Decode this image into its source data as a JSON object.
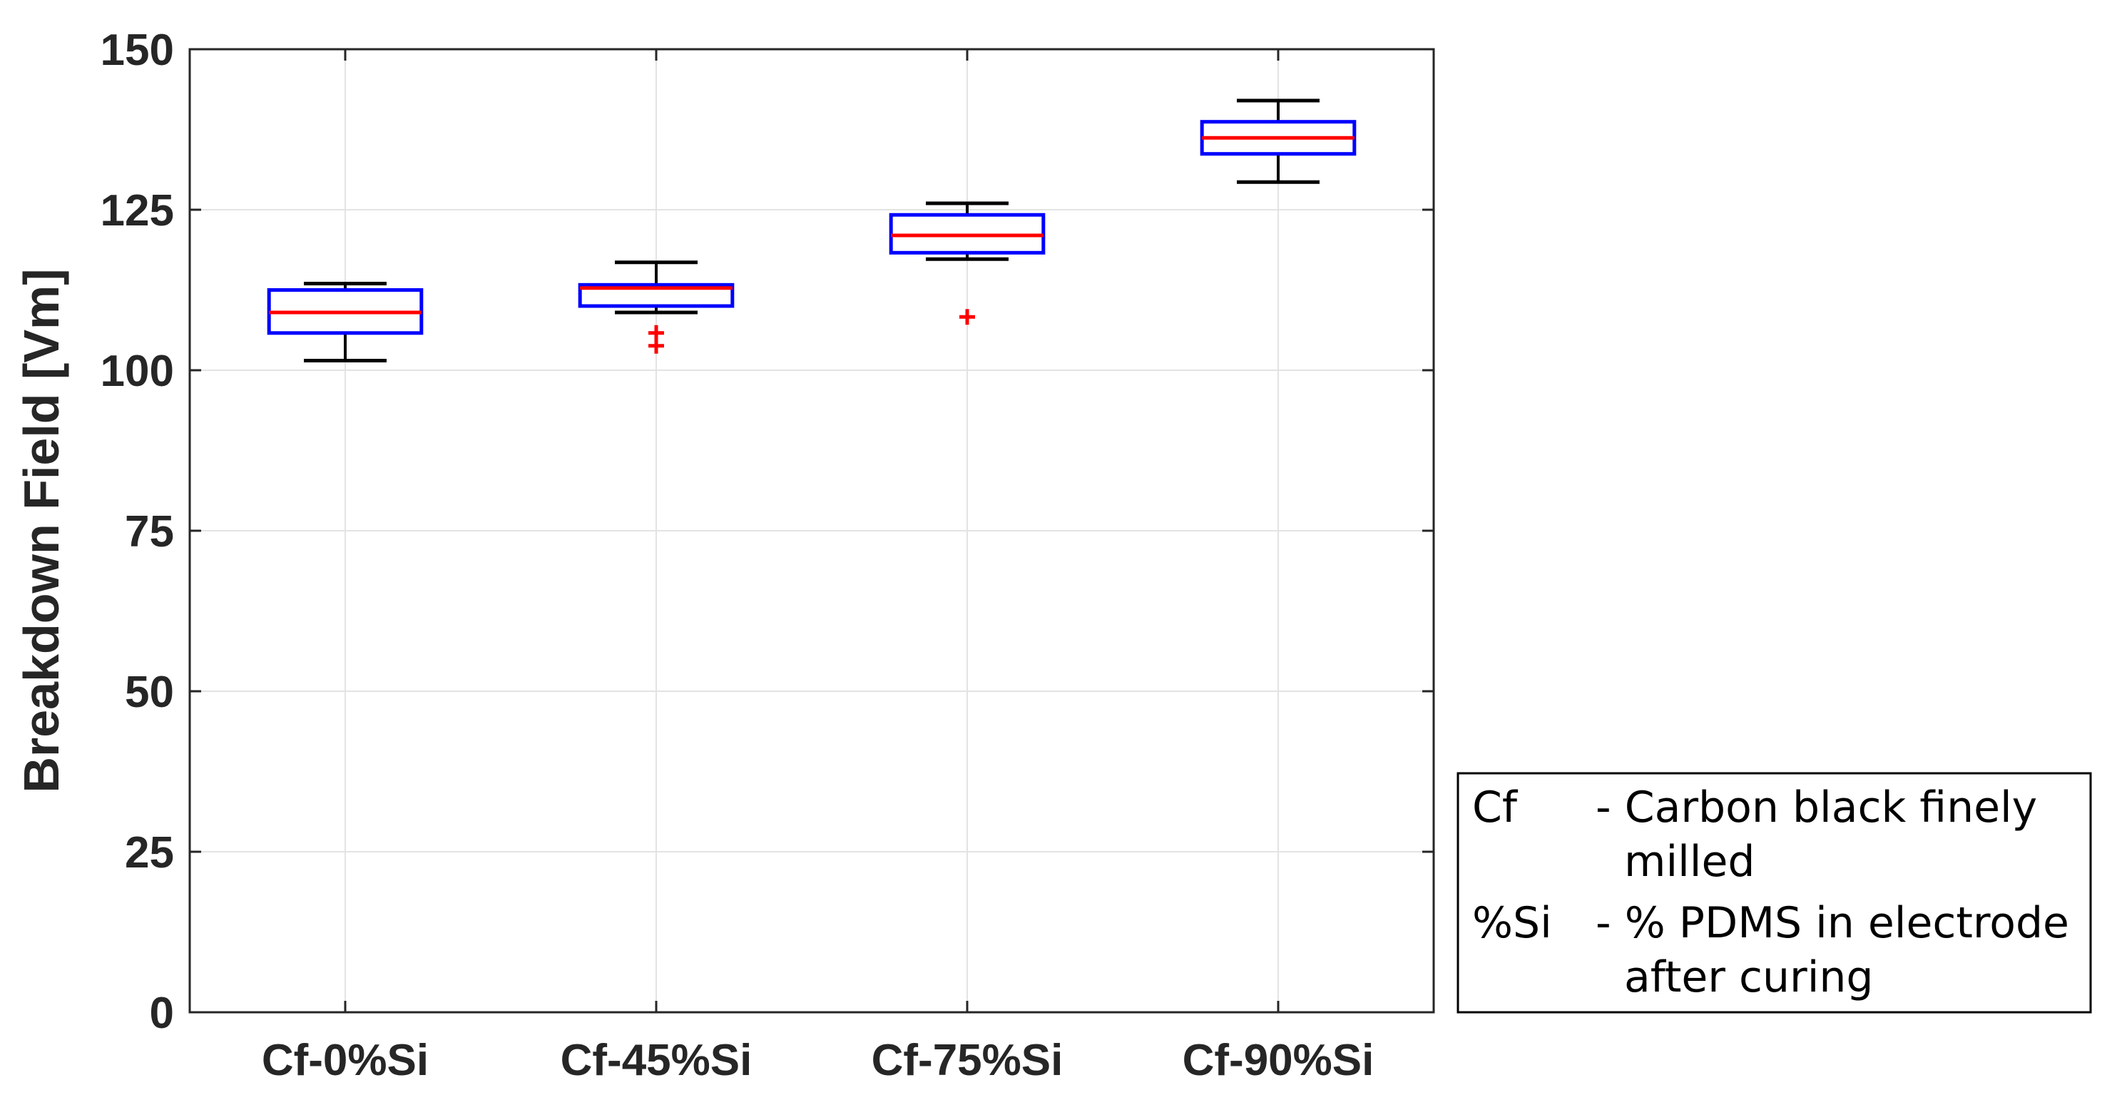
{
  "chart_data": {
    "type": "box",
    "categories": [
      "Cf-0%Si",
      "Cf-45%Si",
      "Cf-75%Si",
      "Cf-90%Si"
    ],
    "ylabel": "Breakdown Field [Vm]",
    "xlabel": "",
    "ylim": [
      0,
      150
    ],
    "yticks": [
      "0",
      "25",
      "50",
      "75",
      "100",
      "125",
      "150"
    ],
    "grid": true,
    "boxes": [
      {
        "category": "Cf-0%Si",
        "whisker_low": 101.5,
        "q1": 105.8,
        "median": 109.0,
        "q3": 112.5,
        "whisker_high": 113.5,
        "outliers": []
      },
      {
        "category": "Cf-45%Si",
        "whisker_low": 109.0,
        "q1": 110.0,
        "median": 112.8,
        "q3": 113.3,
        "whisker_high": 116.8,
        "outliers": [
          103.8,
          105.8
        ]
      },
      {
        "category": "Cf-75%Si",
        "whisker_low": 117.3,
        "q1": 118.3,
        "median": 121.0,
        "q3": 124.2,
        "whisker_high": 126.0,
        "outliers": [
          108.3
        ]
      },
      {
        "category": "Cf-90%Si",
        "whisker_low": 129.3,
        "q1": 133.7,
        "median": 136.2,
        "q3": 138.7,
        "whisker_high": 142.0,
        "outliers": []
      }
    ],
    "colors": {
      "box": "#0000ff",
      "median": "#ff0000",
      "whisker": "#000000",
      "outlier": "#ff0000",
      "grid": "#e3e3e3"
    }
  },
  "annotation": {
    "rows": [
      {
        "key": "Cf",
        "lines": [
          "- Carbon black finely",
          "milled"
        ]
      },
      {
        "key": "%Si",
        "lines": [
          "- % PDMS in electrode",
          "after curing"
        ]
      }
    ]
  }
}
